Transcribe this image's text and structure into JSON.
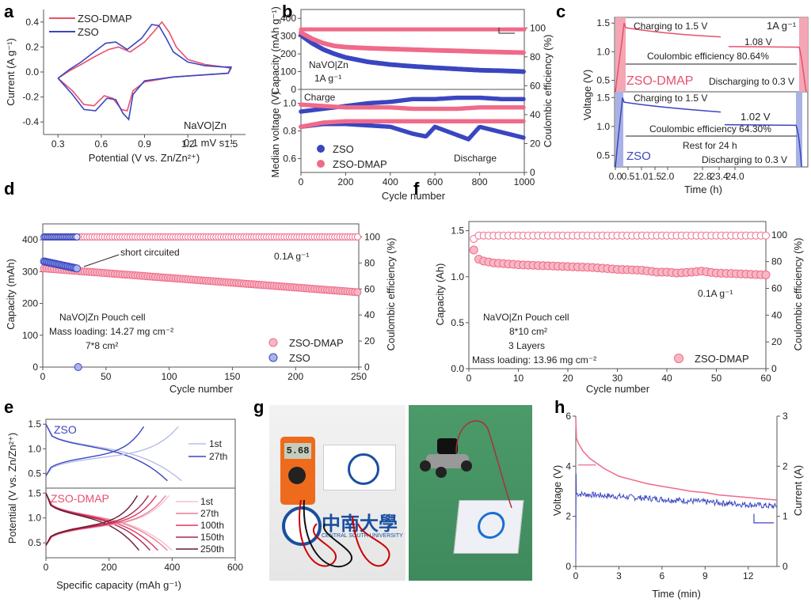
{
  "colors": {
    "red": "#e8506e",
    "pink": "#f06a8a",
    "blue": "#3a46c0",
    "lightblue": "#a9b2e6",
    "lightred": "#f4a6b4",
    "axis": "#555555"
  },
  "panel_labels": [
    "a",
    "b",
    "c",
    "d",
    "e",
    "f",
    "g",
    "h"
  ],
  "photos": {
    "left": {
      "meter_reading": "5.68",
      "university_cn": "中南大學",
      "university_en": "CENTRAL SOUTH UNIVERSITY"
    },
    "right": {
      "caption": "robot powered by pouch cells"
    }
  },
  "chart_data": [
    {
      "id": "a",
      "type": "line",
      "title": "",
      "xlabel": "Potential (V vs. Zn/Zn²⁺)",
      "ylabel": "Current (A g⁻¹)",
      "xlim": [
        0.2,
        1.6
      ],
      "ylim": [
        -0.5,
        0.5
      ],
      "xticks": [
        0.3,
        0.6,
        0.9,
        1.2,
        1.5
      ],
      "yticks": [
        -0.4,
        -0.2,
        0.0,
        0.2,
        0.4
      ],
      "ytick_labels": [
        "-0.4",
        "-0.2",
        "0.0",
        "0.2",
        "0.4"
      ],
      "xtick_labels": [
        "0.3",
        "0.6",
        "0.9",
        "1.2",
        "1.5"
      ],
      "legend": [
        "ZSO-DMAP",
        "ZSO"
      ],
      "legend_position": "top-left",
      "annotations": [
        "NaVO|Zn",
        "0.1 mV s⁻¹"
      ],
      "series": [
        {
          "name": "ZSO-DMAP",
          "color": "red",
          "x": [
            0.3,
            0.38,
            0.46,
            0.55,
            0.65,
            0.72,
            0.8,
            0.9,
            0.97,
            1.02,
            1.07,
            1.12,
            1.2,
            1.32,
            1.45,
            1.5,
            1.48,
            1.35,
            1.1,
            0.9,
            0.82,
            0.78,
            0.74,
            0.68,
            0.62,
            0.55,
            0.48,
            0.4,
            0.3
          ],
          "y": [
            -0.05,
            0.01,
            0.06,
            0.12,
            0.18,
            0.2,
            0.16,
            0.24,
            0.33,
            0.4,
            0.32,
            0.2,
            0.1,
            0.06,
            0.04,
            0.03,
            -0.01,
            -0.02,
            -0.04,
            -0.08,
            -0.15,
            -0.31,
            -0.3,
            -0.21,
            -0.19,
            -0.27,
            -0.26,
            -0.15,
            -0.05
          ]
        },
        {
          "name": "ZSO",
          "color": "blue",
          "x": [
            0.3,
            0.38,
            0.46,
            0.55,
            0.63,
            0.7,
            0.78,
            0.88,
            0.95,
            1.0,
            1.05,
            1.1,
            1.2,
            1.32,
            1.45,
            1.5,
            1.48,
            1.35,
            1.1,
            0.9,
            0.82,
            0.79,
            0.75,
            0.7,
            0.64,
            0.56,
            0.48,
            0.4,
            0.3
          ],
          "y": [
            -0.05,
            0.02,
            0.08,
            0.16,
            0.23,
            0.24,
            0.18,
            0.27,
            0.38,
            0.37,
            0.27,
            0.16,
            0.08,
            0.05,
            0.04,
            0.04,
            -0.01,
            -0.02,
            -0.04,
            -0.07,
            -0.18,
            -0.38,
            -0.33,
            -0.22,
            -0.21,
            -0.31,
            -0.3,
            -0.18,
            -0.05
          ]
        }
      ]
    },
    {
      "id": "b-top",
      "type": "scatter",
      "xlabel": "Cycle number",
      "ylabel": "Capacity (mAh g⁻¹)",
      "y2label": "Coulombic efficiency (%)",
      "xlim": [
        0,
        1000
      ],
      "ylim": [
        0,
        450
      ],
      "yticks": [
        0,
        100,
        200,
        300,
        400
      ],
      "y2lim": [
        50,
        110
      ],
      "y2ticks": [
        60,
        80,
        100
      ],
      "annotations": [
        "NaVO|Zn",
        "1A g⁻¹"
      ],
      "series": [
        {
          "name": "ZSO-DMAP capacity",
          "color": "pink",
          "x": [
            0,
            50,
            100,
            150,
            200,
            300,
            400,
            500,
            600,
            700,
            800,
            900,
            1000
          ],
          "y": [
            320,
            285,
            260,
            245,
            238,
            232,
            228,
            224,
            220,
            217,
            213,
            210,
            207
          ]
        },
        {
          "name": "ZSO capacity",
          "color": "blue",
          "x": [
            0,
            50,
            100,
            150,
            200,
            300,
            400,
            500,
            600,
            700,
            800,
            900,
            1000
          ],
          "y": [
            305,
            260,
            225,
            200,
            180,
            155,
            140,
            130,
            122,
            115,
            108,
            105,
            100
          ]
        },
        {
          "name": "CE",
          "color": "pink",
          "x": [
            0,
            1000
          ],
          "y": [
            99,
            99
          ]
        }
      ]
    },
    {
      "id": "b-bottom",
      "type": "scatter",
      "xlabel": "Cycle number",
      "ylabel": "Median voltage (V)",
      "xlim": [
        0,
        1000
      ],
      "xticks": [
        0,
        200,
        400,
        600,
        800,
        1000
      ],
      "ylim": [
        0.5,
        1.1
      ],
      "yticks": [
        0.6,
        0.8,
        1.0
      ],
      "y2ticks": [
        0,
        20,
        40
      ],
      "legend": [
        "ZSO",
        "ZSO-DMAP"
      ],
      "legend_position": "bottom-left",
      "annotations": [
        "Charge",
        "Discharge"
      ],
      "series": [
        {
          "name": "ZSO charge",
          "color": "blue",
          "x": [
            0,
            100,
            200,
            300,
            400,
            500,
            600,
            700,
            800,
            900,
            1000
          ],
          "y": [
            0.94,
            0.96,
            0.98,
            1.0,
            1.01,
            1.03,
            1.03,
            1.04,
            1.04,
            1.03,
            1.03
          ]
        },
        {
          "name": "ZSO-DMAP charge",
          "color": "pink",
          "x": [
            0,
            100,
            200,
            300,
            400,
            500,
            600,
            700,
            800,
            900,
            1000
          ],
          "y": [
            0.99,
            0.98,
            0.97,
            0.97,
            0.97,
            0.96,
            0.96,
            0.96,
            0.97,
            0.97,
            0.97
          ]
        },
        {
          "name": "ZSO discharge",
          "color": "blue",
          "x": [
            0,
            100,
            200,
            300,
            400,
            500,
            560,
            600,
            700,
            750,
            800,
            900,
            1000
          ],
          "y": [
            0.83,
            0.85,
            0.85,
            0.84,
            0.83,
            0.78,
            0.76,
            0.83,
            0.77,
            0.74,
            0.83,
            0.79,
            0.75
          ]
        },
        {
          "name": "ZSO-DMAP discharge",
          "color": "pink",
          "x": [
            0,
            100,
            200,
            300,
            400,
            500,
            600,
            700,
            800,
            900,
            1000
          ],
          "y": [
            0.83,
            0.86,
            0.87,
            0.87,
            0.87,
            0.87,
            0.87,
            0.87,
            0.87,
            0.87,
            0.87
          ]
        }
      ]
    },
    {
      "id": "c",
      "type": "line",
      "xlabel": "Time (h)",
      "ylabel": "Voltage (V)",
      "xtick_labels": [
        "0.0",
        "0.5",
        "1.0",
        "1.5",
        "2.0",
        "22.8",
        "23.4",
        "24.0"
      ],
      "ylim": [
        0.3,
        1.6
      ],
      "yticks": [
        0.5,
        1.0,
        1.5
      ],
      "top": {
        "label": "ZSO-DMAP",
        "color": "red",
        "annotations": [
          "Charging to 1.5 V",
          "1A g⁻¹",
          "1.08 V",
          "Coulombic efficiency 80.64%",
          "Discharging to 0.3 V"
        ],
        "end_voltage": 1.08,
        "ce": 80.64
      },
      "bottom": {
        "label": "ZSO",
        "color": "blue",
        "annotations": [
          "Charging to 1.5 V",
          "1.02 V",
          "Coulombic efficiency 64.30%",
          "Rest for 24 h",
          "Discharging to 0.3 V"
        ],
        "end_voltage": 1.02,
        "ce": 64.3
      }
    },
    {
      "id": "d",
      "type": "scatter",
      "xlabel": "Cycle number",
      "ylabel": "Capacity (mAh)",
      "y2label": "Coulombic efficiency (%)",
      "xlim": [
        0,
        250
      ],
      "xticks": [
        0,
        50,
        100,
        150,
        200,
        250
      ],
      "ylim": [
        0,
        450
      ],
      "yticks": [
        0,
        100,
        200,
        300,
        400
      ],
      "y2lim": [
        0,
        110
      ],
      "y2ticks": [
        0,
        20,
        40,
        60,
        80,
        100
      ],
      "legend": [
        "ZSO-DMAP",
        "ZSO"
      ],
      "legend_position": "bottom-right",
      "annotations": [
        "short circuited",
        "0.1A g⁻¹",
        "NaVO|Zn Pouch cell",
        "Mass loading: 14.27 mg cm⁻²",
        "7*8 cm²"
      ],
      "series": [
        {
          "name": "ZSO-DMAP capacity",
          "color": "pink",
          "x_range": [
            1,
            250
          ],
          "y_start": 310,
          "y_end": 235
        },
        {
          "name": "ZSO capacity",
          "color": "blue",
          "x_range": [
            1,
            27
          ],
          "y_start": 332,
          "y_end": 310,
          "drop_cycle": 28
        },
        {
          "name": "ZSO-DMAP CE",
          "color": "pink",
          "x_range": [
            1,
            250
          ],
          "value": 100
        },
        {
          "name": "ZSO CE",
          "color": "blue",
          "x_range": [
            1,
            27
          ],
          "value": 100
        }
      ]
    },
    {
      "id": "e",
      "type": "line",
      "xlabel": "Specific capacity (mAh g⁻¹)",
      "ylabel": "Potential (V vs. Zn/Zn²⁺)",
      "xlim": [
        0,
        600
      ],
      "xticks": [
        0,
        200,
        400,
        600
      ],
      "ylim": [
        0.2,
        1.6
      ],
      "yticks": [
        0.5,
        1.0,
        1.5
      ],
      "top": {
        "label": "ZSO",
        "legend": [
          "1st",
          "27th"
        ],
        "discharge_caps": [
          430,
          385
        ],
        "charge_caps": [
          420,
          310
        ]
      },
      "bottom": {
        "label": "ZSO-DMAP",
        "legend": [
          "1st",
          "27th",
          "100th",
          "150th",
          "250th"
        ],
        "discharge_caps": [
          400,
          385,
          355,
          330,
          295
        ],
        "charge_caps": [
          390,
          380,
          350,
          325,
          290
        ]
      }
    },
    {
      "id": "f",
      "type": "scatter",
      "xlabel": "Cycle number",
      "ylabel": "Capacity (Ah)",
      "y2label": "Coulombic efficiency (%)",
      "xlim": [
        0,
        60
      ],
      "xticks": [
        0,
        10,
        20,
        30,
        40,
        50,
        60
      ],
      "ylim": [
        0,
        1.6
      ],
      "yticks": [
        0.0,
        0.5,
        1.0,
        1.5
      ],
      "ytick_labels": [
        "0.0",
        "0.5",
        "1.0",
        "1.5"
      ],
      "y2ticks": [
        0,
        20,
        40,
        60,
        80,
        100
      ],
      "legend": [
        "ZSO-DMAP"
      ],
      "legend_position": "bottom-right",
      "annotations": [
        "0.1A g⁻¹",
        "NaVO|Zn Pouch cell",
        "8*10 cm²",
        "3 Layers",
        "Mass loading: 13.96 mg cm⁻²"
      ],
      "series": [
        {
          "name": "capacity",
          "color": "pink",
          "x": [
            1,
            2,
            3,
            4,
            5,
            10,
            15,
            20,
            25,
            30,
            35,
            38,
            40,
            42,
            45,
            47,
            50,
            55,
            60
          ],
          "y": [
            1.29,
            1.19,
            1.17,
            1.16,
            1.15,
            1.13,
            1.12,
            1.11,
            1.1,
            1.08,
            1.07,
            1.05,
            1.05,
            1.04,
            1.05,
            1.06,
            1.04,
            1.03,
            1.02
          ]
        },
        {
          "name": "CE",
          "color": "pink",
          "x": [
            1,
            60
          ],
          "y": [
            97,
            99
          ]
        }
      ]
    },
    {
      "id": "h",
      "type": "line",
      "xlabel": "Time (min)",
      "ylabel": "Voltage (V)",
      "y2label": "Current (A)",
      "xlim": [
        0,
        14
      ],
      "xticks": [
        0,
        3,
        6,
        9,
        12
      ],
      "ylim": [
        0,
        6
      ],
      "yticks": [
        0,
        2,
        4,
        6
      ],
      "y2lim": [
        0,
        3
      ],
      "y2ticks": [
        0,
        1,
        2,
        3
      ],
      "series": [
        {
          "name": "Voltage",
          "color": "pink",
          "x": [
            0,
            0.05,
            0.2,
            0.5,
            1,
            2,
            3,
            4,
            5,
            6,
            7,
            8,
            9,
            10,
            11,
            12,
            13,
            14
          ],
          "y": [
            5.9,
            5.1,
            4.9,
            4.6,
            4.3,
            3.9,
            3.6,
            3.45,
            3.3,
            3.2,
            3.1,
            3.0,
            2.95,
            2.85,
            2.8,
            2.75,
            2.7,
            2.65
          ]
        },
        {
          "name": "Current",
          "color": "blue",
          "x": [
            0,
            14
          ],
          "y": [
            1.45,
            1.2
          ]
        }
      ]
    }
  ]
}
